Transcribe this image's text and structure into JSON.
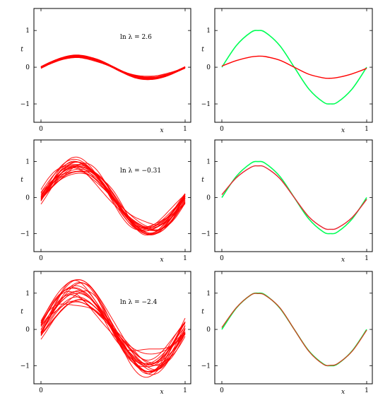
{
  "chart_data": [
    {
      "type": "line",
      "kind": "ensemble",
      "annotation": "ln λ = 2.6",
      "xlabel": "x",
      "ylabel": "t",
      "xlim": [
        0,
        1
      ],
      "ylim": [
        -1.5,
        1.6
      ],
      "xticks": [
        "0",
        "1"
      ],
      "yticks": [
        "1",
        "0",
        "−1"
      ],
      "series_count": 20,
      "spread": 0.04,
      "amplitude": 0.3,
      "color": "#ff0000"
    },
    {
      "type": "line",
      "kind": "comparison",
      "xlabel": "x",
      "ylabel": "t",
      "xlim": [
        0,
        1
      ],
      "ylim": [
        -1.5,
        1.6
      ],
      "xticks": [
        "0",
        "1"
      ],
      "yticks": [
        "1",
        "0",
        "−1"
      ],
      "series": [
        {
          "values_x": [
            0,
            0.1,
            0.2,
            0.25,
            0.3,
            0.4,
            0.5,
            0.6,
            0.7,
            0.75,
            0.8,
            0.9,
            1.0
          ],
          "values_y": [
            0,
            0.59,
            0.95,
            1.0,
            0.95,
            0.59,
            0,
            -0.59,
            -0.95,
            -1.0,
            -0.95,
            -0.59,
            0
          ],
          "color": "#00ff55"
        },
        {
          "values_x": [
            0,
            0.1,
            0.2,
            0.25,
            0.3,
            0.4,
            0.5,
            0.6,
            0.7,
            0.75,
            0.8,
            0.9,
            1.0
          ],
          "values_y": [
            0.03,
            0.18,
            0.28,
            0.3,
            0.29,
            0.19,
            0.0,
            -0.19,
            -0.29,
            -0.3,
            -0.28,
            -0.18,
            -0.03
          ],
          "color": "#ff0000"
        }
      ]
    },
    {
      "type": "line",
      "kind": "ensemble",
      "annotation": "ln λ = −0.31",
      "xlabel": "x",
      "ylabel": "t",
      "xlim": [
        0,
        1
      ],
      "ylim": [
        -1.5,
        1.6
      ],
      "xticks": [
        "0",
        "1"
      ],
      "yticks": [
        "1",
        "0",
        "−1"
      ],
      "series_count": 20,
      "spread": 0.18,
      "amplitude": 0.88,
      "color": "#ff0000"
    },
    {
      "type": "line",
      "kind": "comparison",
      "xlabel": "x",
      "ylabel": "t",
      "xlim": [
        0,
        1
      ],
      "ylim": [
        -1.5,
        1.6
      ],
      "xticks": [
        "0",
        "1"
      ],
      "yticks": [
        "1",
        "0",
        "−1"
      ],
      "series": [
        {
          "values_x": [
            0,
            0.1,
            0.2,
            0.25,
            0.3,
            0.4,
            0.5,
            0.6,
            0.7,
            0.75,
            0.8,
            0.9,
            1.0
          ],
          "values_y": [
            0,
            0.59,
            0.95,
            1.0,
            0.95,
            0.59,
            0,
            -0.59,
            -0.95,
            -1.0,
            -0.95,
            -0.59,
            0
          ],
          "color": "#00ff55"
        },
        {
          "values_x": [
            0,
            0.1,
            0.2,
            0.25,
            0.3,
            0.4,
            0.5,
            0.6,
            0.7,
            0.75,
            0.8,
            0.9,
            1.0
          ],
          "values_y": [
            0.08,
            0.55,
            0.84,
            0.88,
            0.84,
            0.53,
            0.0,
            -0.53,
            -0.84,
            -0.88,
            -0.84,
            -0.55,
            -0.05
          ],
          "color": "#e8222e"
        }
      ]
    },
    {
      "type": "line",
      "kind": "ensemble",
      "annotation": "ln λ = −2.4",
      "xlabel": "x",
      "ylabel": "t",
      "xlim": [
        0,
        1
      ],
      "ylim": [
        -1.5,
        1.6
      ],
      "xticks": [
        "0",
        "1"
      ],
      "yticks": [
        "1",
        "0",
        "−1"
      ],
      "series_count": 20,
      "spread": 0.3,
      "amplitude": 0.98,
      "color": "#ff0000"
    },
    {
      "type": "line",
      "kind": "comparison",
      "xlabel": "x",
      "ylabel": "t",
      "xlim": [
        0,
        1
      ],
      "ylim": [
        -1.5,
        1.6
      ],
      "xticks": [
        "0",
        "1"
      ],
      "yticks": [
        "1",
        "0",
        "−1"
      ],
      "series": [
        {
          "values_x": [
            0,
            0.1,
            0.2,
            0.25,
            0.3,
            0.4,
            0.5,
            0.6,
            0.7,
            0.75,
            0.8,
            0.9,
            1.0
          ],
          "values_y": [
            0,
            0.59,
            0.95,
            1.0,
            0.95,
            0.59,
            0,
            -0.59,
            -0.95,
            -1.0,
            -0.95,
            -0.59,
            0
          ],
          "color": "#00ff55"
        },
        {
          "values_x": [
            0,
            0.1,
            0.2,
            0.25,
            0.3,
            0.4,
            0.5,
            0.6,
            0.7,
            0.75,
            0.8,
            0.9,
            1.0
          ],
          "values_y": [
            0.05,
            0.6,
            0.95,
            0.99,
            0.94,
            0.6,
            0.0,
            -0.6,
            -0.96,
            -0.99,
            -0.94,
            -0.6,
            -0.02
          ],
          "color": "#cc4422"
        }
      ]
    }
  ]
}
